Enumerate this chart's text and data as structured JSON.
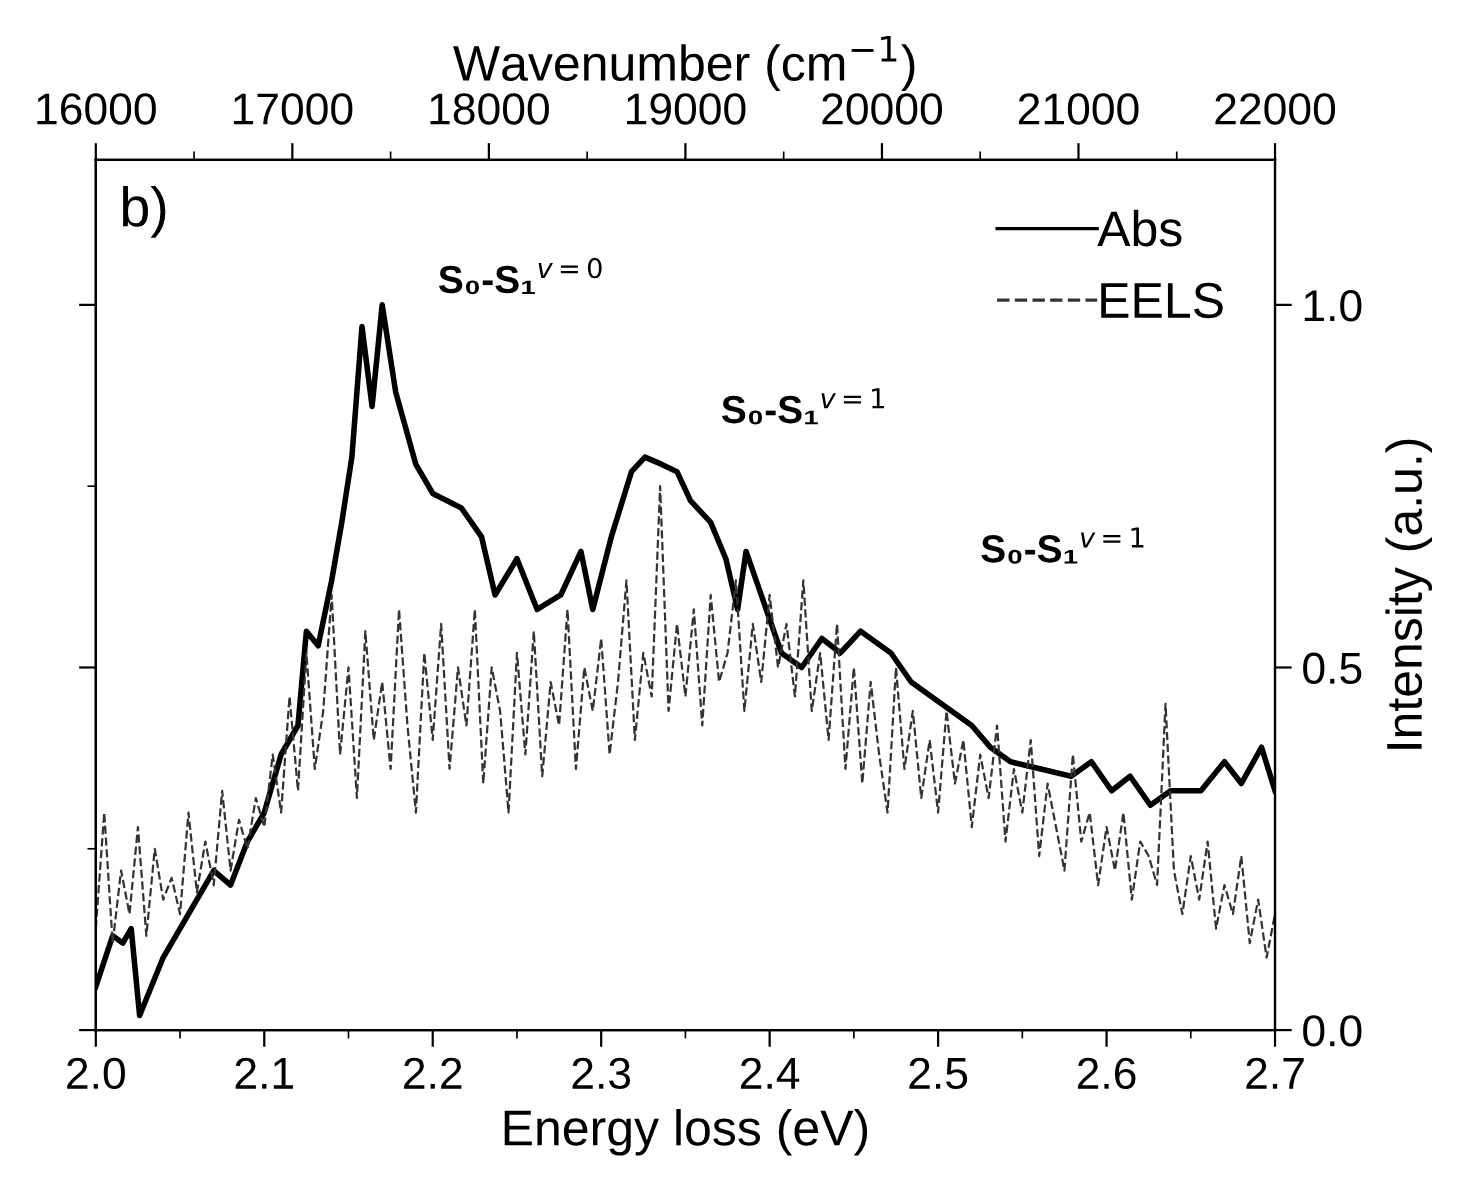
{
  "chart_data": {
    "type": "line",
    "xlabel": "Energy loss (eV)",
    "ylabel": "Intensity (a.u.)",
    "x2label": "Wavenumber (cm$^{−1}$)",
    "xlim": [
      2.0,
      2.7
    ],
    "xticks": [
      {
        "value": 2.0,
        "label": "2.0"
      },
      {
        "value": 2.05,
        "label": null
      },
      2.1,
      {
        "value": 2.15,
        "label": null
      },
      2.2,
      {
        "value": 2.25,
        "label": null
      },
      2.3,
      {
        "value": 2.35,
        "label": null
      },
      2.4,
      {
        "value": 2.45,
        "label": null
      },
      2.5,
      {
        "value": 2.55,
        "label": null
      },
      2.6,
      {
        "value": 2.65,
        "label": null
      },
      2.7
    ],
    "x2lim": [
      16000,
      22000
    ],
    "x2ticks": [
      16000,
      {
        "value": 16500,
        "label": null
      },
      17000,
      {
        "value": 17500,
        "label": null
      },
      18000,
      {
        "value": 18500,
        "label": null
      },
      19000,
      {
        "value": 19500,
        "label": null
      },
      20000,
      {
        "value": 20500,
        "label": null
      },
      21000,
      {
        "value": 21500,
        "label": null
      },
      22000
    ],
    "ylim": [
      0.0,
      1.2
    ],
    "yticks": [
      {
        "value": 0.0,
        "label": "0.0"
      },
      {
        "value": 0.25,
        "label": null
      },
      0.5,
      {
        "value": 0.75,
        "label": null
      },
      {
        "value": 1.0,
        "label": "1.0"
      }
    ],
    "legend": "top right",
    "grid": false,
    "marker": "none",
    "annotations": [
      "b)",
      "S₀-S₁$^{v=0}$",
      "S₀-S₁$^{v=1}$",
      "S₀-S₁$^{v=1}$"
    ],
    "series": [
      {
        "name": "Abs",
        "color": "#000000",
        "line_style": "solid",
        "x": [
          2.0,
          2.01,
          2.016,
          2.021,
          2.026,
          2.04,
          2.06,
          2.07,
          2.08,
          2.09,
          2.1,
          2.11,
          2.12,
          2.125,
          2.132,
          2.14,
          2.146,
          2.152,
          2.158,
          2.164,
          2.17,
          2.178,
          2.19,
          2.2,
          2.217,
          2.229,
          2.237,
          2.25,
          2.262,
          2.276,
          2.288,
          2.295,
          2.306,
          2.318,
          2.326,
          2.336,
          2.345,
          2.353,
          2.365,
          2.374,
          2.381,
          2.386,
          2.395,
          2.407,
          2.419,
          2.431,
          2.442,
          2.454,
          2.472,
          2.484,
          2.496,
          2.508,
          2.52,
          2.531,
          2.543,
          2.561,
          2.579,
          2.591,
          2.603,
          2.614,
          2.626,
          2.638,
          2.656,
          2.67,
          2.68,
          2.692,
          2.7
        ],
        "values": [
          0.06,
          0.13,
          0.12,
          0.14,
          0.02,
          0.1,
          0.18,
          0.22,
          0.2,
          0.26,
          0.3,
          0.38,
          0.42,
          0.55,
          0.53,
          0.62,
          0.7,
          0.79,
          0.97,
          0.86,
          1.0,
          0.88,
          0.78,
          0.74,
          0.72,
          0.68,
          0.6,
          0.65,
          0.58,
          0.6,
          0.66,
          0.58,
          0.68,
          0.77,
          0.79,
          0.78,
          0.77,
          0.73,
          0.7,
          0.65,
          0.58,
          0.66,
          0.6,
          0.52,
          0.5,
          0.54,
          0.52,
          0.55,
          0.52,
          0.48,
          0.46,
          0.44,
          0.42,
          0.39,
          0.37,
          0.36,
          0.35,
          0.37,
          0.33,
          0.35,
          0.31,
          0.33,
          0.33,
          0.37,
          0.34,
          0.39,
          0.33
        ]
      },
      {
        "name": "EELS",
        "color": "#333333",
        "line_style": "dashed",
        "x": [
          2.0,
          2.005,
          2.01,
          2.015,
          2.02,
          2.025,
          2.03,
          2.035,
          2.04,
          2.045,
          2.05,
          2.055,
          2.06,
          2.065,
          2.07,
          2.075,
          2.08,
          2.085,
          2.09,
          2.095,
          2.1,
          2.105,
          2.11,
          2.115,
          2.12,
          2.125,
          2.13,
          2.135,
          2.14,
          2.145,
          2.15,
          2.155,
          2.16,
          2.165,
          2.17,
          2.175,
          2.18,
          2.185,
          2.19,
          2.195,
          2.2,
          2.205,
          2.21,
          2.215,
          2.22,
          2.225,
          2.23,
          2.235,
          2.24,
          2.245,
          2.25,
          2.255,
          2.26,
          2.265,
          2.27,
          2.275,
          2.28,
          2.285,
          2.29,
          2.295,
          2.3,
          2.305,
          2.31,
          2.315,
          2.32,
          2.325,
          2.33,
          2.335,
          2.34,
          2.345,
          2.35,
          2.355,
          2.36,
          2.365,
          2.37,
          2.375,
          2.38,
          2.385,
          2.39,
          2.395,
          2.4,
          2.405,
          2.41,
          2.415,
          2.42,
          2.425,
          2.43,
          2.435,
          2.44,
          2.445,
          2.45,
          2.455,
          2.46,
          2.465,
          2.47,
          2.475,
          2.48,
          2.485,
          2.49,
          2.495,
          2.5,
          2.505,
          2.51,
          2.515,
          2.52,
          2.525,
          2.53,
          2.535,
          2.54,
          2.545,
          2.55,
          2.555,
          2.56,
          2.565,
          2.57,
          2.575,
          2.58,
          2.585,
          2.59,
          2.595,
          2.6,
          2.605,
          2.61,
          2.615,
          2.62,
          2.625,
          2.63,
          2.635,
          2.64,
          2.645,
          2.65,
          2.655,
          2.66,
          2.665,
          2.67,
          2.675,
          2.68,
          2.685,
          2.69,
          2.695,
          2.7
        ],
        "values": [
          0.14,
          0.3,
          0.12,
          0.22,
          0.16,
          0.28,
          0.13,
          0.25,
          0.18,
          0.21,
          0.16,
          0.3,
          0.19,
          0.26,
          0.2,
          0.33,
          0.22,
          0.29,
          0.25,
          0.32,
          0.28,
          0.38,
          0.3,
          0.46,
          0.33,
          0.52,
          0.36,
          0.44,
          0.6,
          0.38,
          0.5,
          0.32,
          0.55,
          0.4,
          0.48,
          0.36,
          0.58,
          0.42,
          0.3,
          0.52,
          0.4,
          0.56,
          0.36,
          0.5,
          0.42,
          0.58,
          0.34,
          0.5,
          0.44,
          0.3,
          0.52,
          0.38,
          0.55,
          0.35,
          0.48,
          0.42,
          0.58,
          0.36,
          0.5,
          0.44,
          0.54,
          0.38,
          0.48,
          0.62,
          0.4,
          0.52,
          0.46,
          0.75,
          0.44,
          0.56,
          0.46,
          0.58,
          0.42,
          0.6,
          0.48,
          0.52,
          0.62,
          0.44,
          0.56,
          0.48,
          0.6,
          0.5,
          0.56,
          0.46,
          0.62,
          0.44,
          0.52,
          0.4,
          0.56,
          0.36,
          0.5,
          0.34,
          0.48,
          0.38,
          0.3,
          0.5,
          0.36,
          0.44,
          0.32,
          0.4,
          0.3,
          0.44,
          0.34,
          0.4,
          0.28,
          0.38,
          0.32,
          0.42,
          0.26,
          0.36,
          0.3,
          0.4,
          0.24,
          0.34,
          0.28,
          0.22,
          0.38,
          0.26,
          0.3,
          0.2,
          0.28,
          0.22,
          0.3,
          0.18,
          0.26,
          0.24,
          0.2,
          0.45,
          0.22,
          0.16,
          0.24,
          0.18,
          0.26,
          0.14,
          0.2,
          0.16,
          0.24,
          0.12,
          0.18,
          0.1,
          0.16
        ]
      }
    ]
  }
}
